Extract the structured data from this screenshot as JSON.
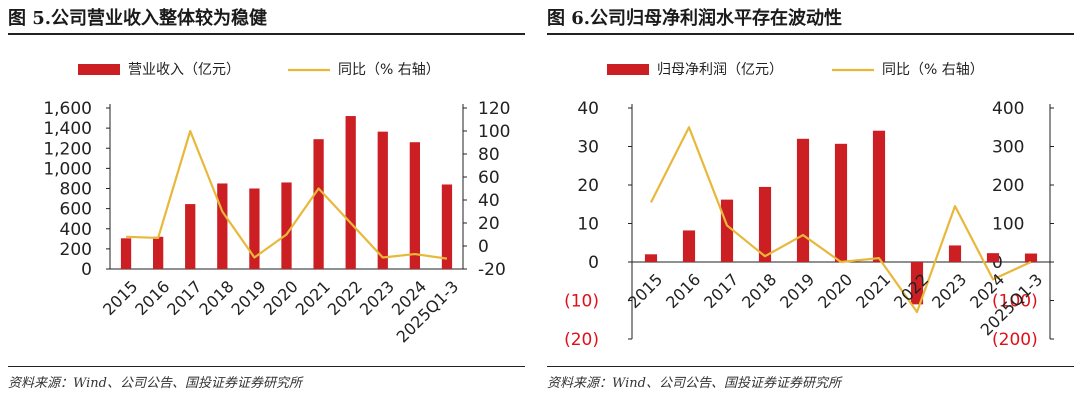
{
  "colors": {
    "bar": "#cc1f24",
    "line": "#e8b83a",
    "axis": "#222222",
    "negative": "#e0101a"
  },
  "source_text": "资料来源：Wind、公司公告、国投证券证券研究所",
  "chart_data": [
    {
      "type": "bar",
      "title": "图 5.公司营业收入整体较为稳健",
      "categories": [
        "2015",
        "2016",
        "2017",
        "2018",
        "2019",
        "2020",
        "2021",
        "2022",
        "2023",
        "2024",
        "2025Q1-3"
      ],
      "series": [
        {
          "name": "营业收入（亿元）",
          "type": "bar",
          "axis": "left",
          "values": [
            305,
            320,
            645,
            850,
            800,
            860,
            1290,
            1520,
            1365,
            1260,
            840
          ]
        },
        {
          "name": "同比（%  右轴）",
          "type": "line",
          "axis": "right",
          "values": [
            8,
            7,
            100,
            30,
            -10,
            10,
            50,
            20,
            -10,
            -7,
            -11
          ]
        }
      ],
      "left_axis": {
        "ylim": [
          0,
          1600
        ],
        "ticks": [
          0,
          200,
          400,
          600,
          800,
          1000,
          1200,
          1400,
          1600
        ],
        "tick_labels": [
          "0",
          "200",
          "400",
          "600",
          "800",
          "1,000",
          "1,200",
          "1,400",
          "1,600"
        ]
      },
      "right_axis": {
        "ylim": [
          -20,
          120
        ],
        "ticks": [
          -20,
          0,
          20,
          40,
          60,
          80,
          100,
          120
        ],
        "tick_labels": [
          "-20",
          "0",
          "20",
          "40",
          "60",
          "80",
          "100",
          "120"
        ]
      }
    },
    {
      "type": "bar",
      "title": "图 6.公司归母净利润水平存在波动性",
      "categories": [
        "2015",
        "2016",
        "2017",
        "2018",
        "2019",
        "2020",
        "2021",
        "2022",
        "2023",
        "2024",
        "2025Q1-3"
      ],
      "series": [
        {
          "name": "归母净利润（亿元）",
          "type": "bar",
          "axis": "left",
          "values": [
            2,
            8.2,
            16.2,
            19.5,
            32,
            30.7,
            34.1,
            -11,
            4.3,
            2.3,
            2.2
          ]
        },
        {
          "name": "同比（%  右轴）",
          "type": "line",
          "axis": "right",
          "values": [
            155,
            350,
            95,
            15,
            70,
            0,
            10,
            -130,
            145,
            -45,
            0
          ]
        }
      ],
      "left_axis": {
        "ylim": [
          -20,
          40
        ],
        "ticks": [
          -20,
          -10,
          0,
          10,
          20,
          30,
          40
        ],
        "tick_labels": [
          "(20)",
          "(10)",
          "0",
          "10",
          "20",
          "30",
          "40"
        ]
      },
      "right_axis": {
        "ylim": [
          -200,
          400
        ],
        "ticks": [
          -200,
          -100,
          0,
          100,
          200,
          300,
          400
        ],
        "tick_labels": [
          "(200)",
          "(100)",
          "0",
          "100",
          "200",
          "300",
          "400"
        ]
      }
    }
  ]
}
